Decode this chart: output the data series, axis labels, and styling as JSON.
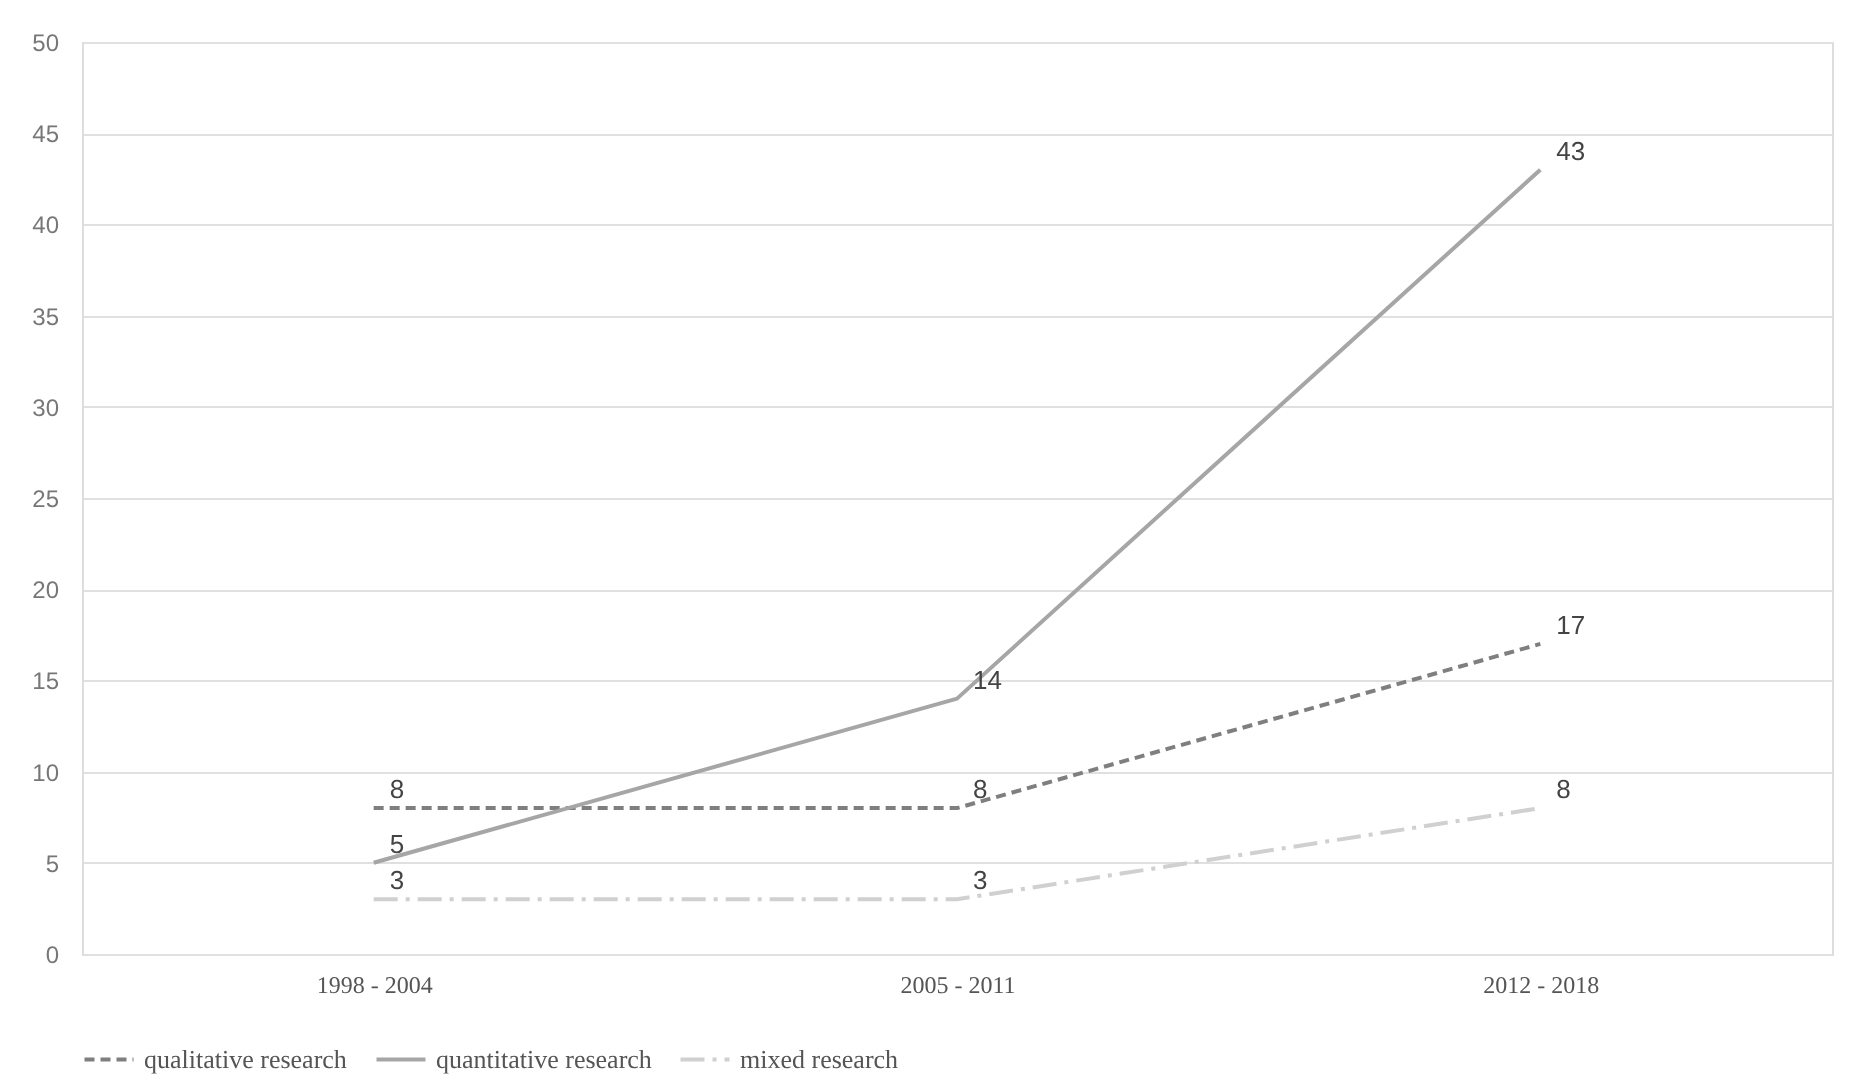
{
  "chart_data": {
    "type": "line",
    "categories": [
      "1998 - 2004",
      "2005 - 2011",
      "2012 - 2018"
    ],
    "series": [
      {
        "name": "qualitative research",
        "color": "#7f7f7f",
        "line_style": "dashed",
        "values": [
          8,
          8,
          17
        ]
      },
      {
        "name": "quantitative research",
        "color": "#a6a6a6",
        "line_style": "solid",
        "values": [
          5,
          14,
          43
        ]
      },
      {
        "name": "mixed research",
        "color": "#d0d0d0",
        "line_style": "dashdot",
        "values": [
          3,
          3,
          8
        ]
      }
    ],
    "ylim": [
      0,
      50
    ],
    "yticks": [
      0,
      5,
      10,
      15,
      20,
      25,
      30,
      35,
      40,
      45,
      50
    ],
    "grid": "y",
    "legend": "bottom",
    "data_labels": true
  }
}
